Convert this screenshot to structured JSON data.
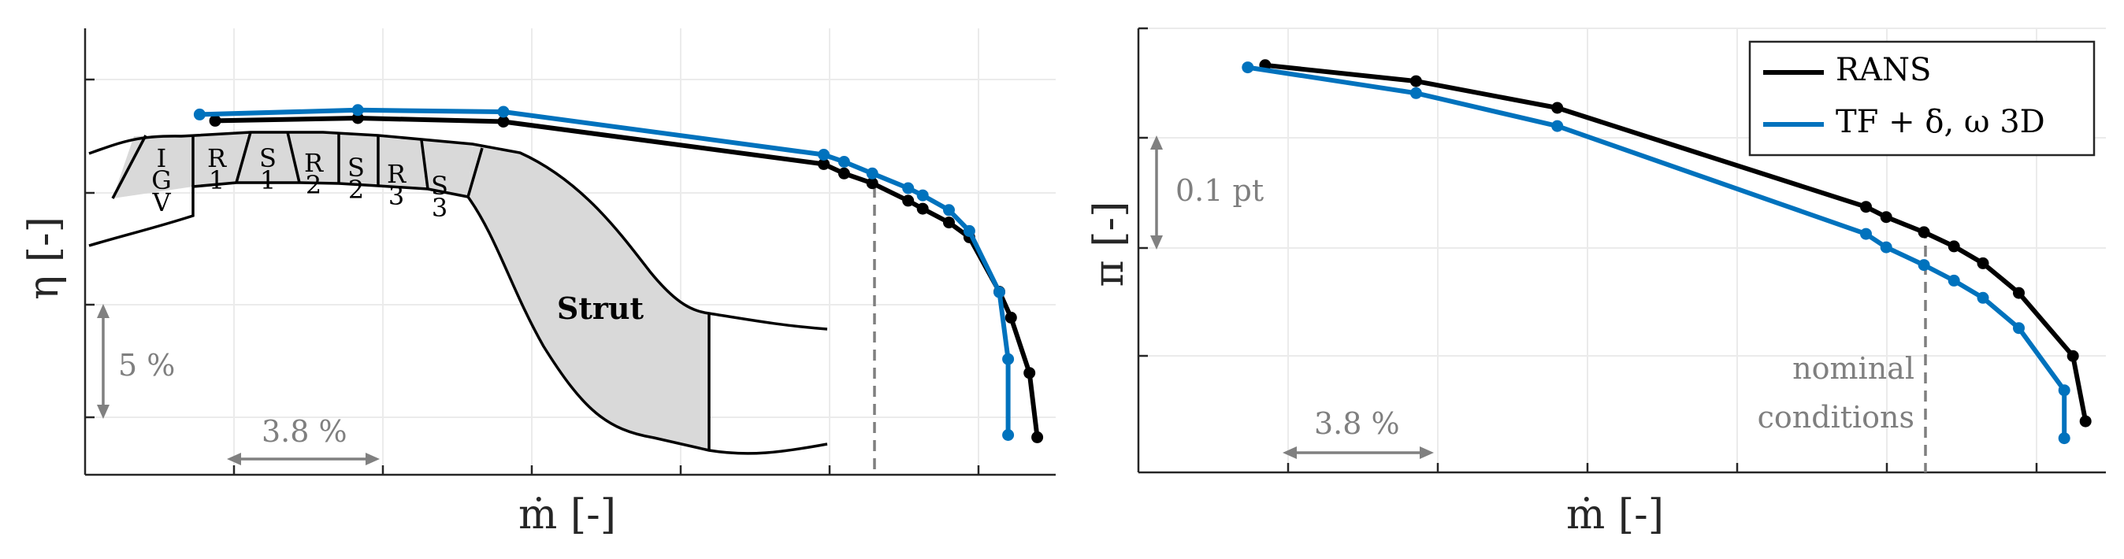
{
  "chart_data": [
    {
      "type": "line",
      "title": "",
      "xlabel": "ṁ [-]",
      "ylabel": "η [-]",
      "xlim": [
        0,
        1
      ],
      "ylim": [
        0,
        1
      ],
      "grid": true,
      "series": [
        {
          "name": "RANS",
          "color": "#000000",
          "points": [
            [
              0.134,
              0.793
            ],
            [
              0.281,
              0.799
            ],
            [
              0.431,
              0.791
            ],
            [
              0.761,
              0.696
            ],
            [
              0.782,
              0.675
            ],
            [
              0.811,
              0.653
            ],
            [
              0.848,
              0.614
            ],
            [
              0.863,
              0.596
            ],
            [
              0.89,
              0.565
            ],
            [
              0.911,
              0.532
            ],
            [
              0.942,
              0.41
            ],
            [
              0.954,
              0.352
            ],
            [
              0.973,
              0.228
            ],
            [
              0.981,
              0.084
            ]
          ],
          "markers": [
            0,
            1,
            2,
            3,
            4,
            5,
            6,
            7,
            8,
            9,
            10,
            11,
            12,
            13
          ]
        },
        {
          "name": "TF + δ, ω 3D",
          "color": "#0072BD",
          "points": [
            [
              0.118,
              0.807
            ],
            [
              0.281,
              0.817
            ],
            [
              0.431,
              0.813
            ],
            [
              0.761,
              0.717
            ],
            [
              0.782,
              0.701
            ],
            [
              0.811,
              0.675
            ],
            [
              0.848,
              0.642
            ],
            [
              0.863,
              0.626
            ],
            [
              0.89,
              0.593
            ],
            [
              0.911,
              0.546
            ],
            [
              0.942,
              0.409
            ],
            [
              0.951,
              0.259
            ],
            [
              0.951,
              0.089
            ]
          ],
          "markers": [
            0,
            1,
            2,
            3,
            4,
            5,
            6,
            7,
            8,
            9,
            10,
            11,
            12
          ]
        }
      ],
      "annotations": [
        {
          "text": "5 %"
        },
        {
          "text": "3.8 %"
        },
        {
          "text": "Strut"
        },
        {
          "text": "I G V"
        },
        {
          "text": "R 1"
        },
        {
          "text": "S 1"
        },
        {
          "text": "R 2"
        },
        {
          "text": "S 2"
        },
        {
          "text": "R 3"
        },
        {
          "text": "S 3"
        }
      ]
    },
    {
      "type": "line",
      "title": "",
      "xlabel": "ṁ [-]",
      "ylabel": "π [-]",
      "xlim": [
        0,
        1
      ],
      "ylim": [
        0,
        1
      ],
      "grid": true,
      "legend_placement": "top-right",
      "series": [
        {
          "name": "RANS",
          "color": "#000000",
          "points": [
            [
              0.131,
              0.917
            ],
            [
              0.287,
              0.881
            ],
            [
              0.433,
              0.821
            ],
            [
              0.752,
              0.598
            ],
            [
              0.773,
              0.575
            ],
            [
              0.812,
              0.541
            ],
            [
              0.843,
              0.509
            ],
            [
              0.873,
              0.471
            ],
            [
              0.91,
              0.404
            ],
            [
              0.966,
              0.262
            ],
            [
              0.979,
              0.115
            ]
          ],
          "markers": [
            0,
            1,
            2,
            3,
            4,
            5,
            6,
            7,
            8,
            9,
            10
          ]
        },
        {
          "name": "TF + δ, ω 3D",
          "color": "#0072BD",
          "points": [
            [
              0.113,
              0.912
            ],
            [
              0.287,
              0.854
            ],
            [
              0.433,
              0.78
            ],
            [
              0.752,
              0.537
            ],
            [
              0.773,
              0.507
            ],
            [
              0.812,
              0.467
            ],
            [
              0.843,
              0.432
            ],
            [
              0.873,
              0.393
            ],
            [
              0.91,
              0.325
            ],
            [
              0.957,
              0.185
            ],
            [
              0.957,
              0.077
            ]
          ],
          "markers": [
            0,
            1,
            2,
            3,
            4,
            5,
            6,
            7,
            8,
            9,
            10
          ]
        }
      ],
      "annotations": [
        {
          "text": "0.1 pt"
        },
        {
          "text": "3.8 %"
        },
        {
          "text": "nominal"
        },
        {
          "text": "conditions"
        }
      ]
    }
  ]
}
